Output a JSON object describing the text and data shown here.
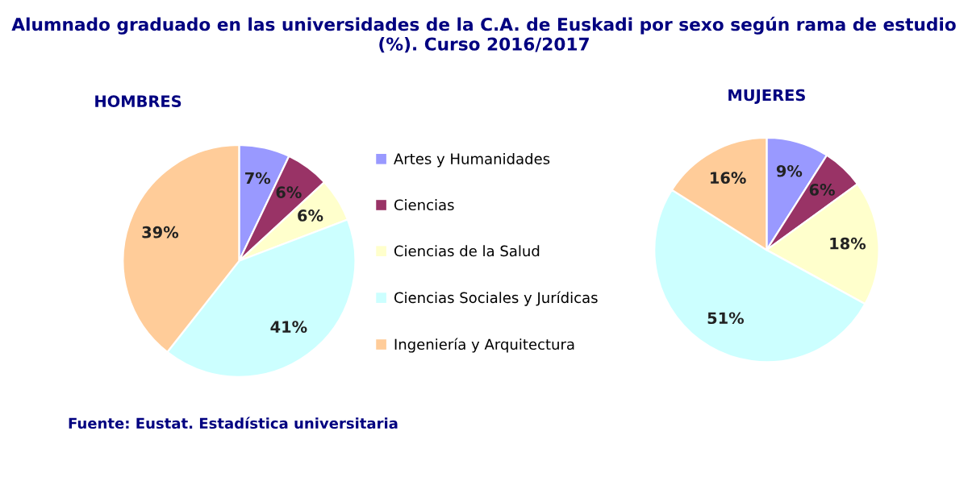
{
  "chart_data": [
    {
      "type": "pie",
      "title": "Alumnado graduado en las universidades de la C.A. de Euskadi por sexo según rama de estudio (%). Curso 2016/2017",
      "subtitle": "HOMBRES",
      "categories": [
        "Artes y Humanidades",
        "Ciencias",
        "Ciencias de la Salud",
        "Ciencias Sociales y Jurídicas",
        "Ingeniería y Arquitectura"
      ],
      "values": [
        7,
        6,
        6,
        41,
        39
      ],
      "value_labels": [
        "7%",
        "6%",
        "6%",
        "41%",
        "39%"
      ],
      "colors": [
        "#9999ff",
        "#993366",
        "#ffffcc",
        "#ccffff",
        "#ffcc99"
      ],
      "legend": "right",
      "annotations": [
        "Fuente: Eustat. Estadística universitaria"
      ]
    },
    {
      "type": "pie",
      "subtitle": "MUJERES",
      "values": [
        9,
        6,
        18,
        51,
        16
      ],
      "categories": [
        null,
        null,
        null,
        null,
        null
      ],
      "value_labels": [
        "9%",
        "6%",
        "18%",
        "51%",
        "16%"
      ],
      "colors": [
        "#9999ff",
        "#993366",
        "#ffffcc",
        "#ccffff",
        "#ffcc99"
      ]
    }
  ]
}
